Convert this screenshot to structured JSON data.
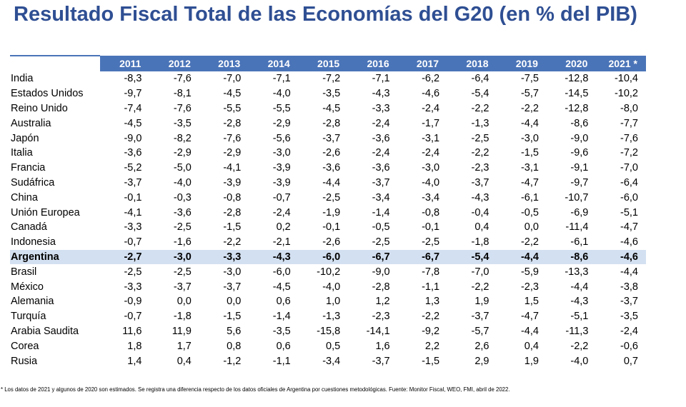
{
  "title": "Resultado Fiscal Total de las Economías del G20 (en % del PIB)",
  "table": {
    "years": [
      "2011",
      "2012",
      "2013",
      "2014",
      "2015",
      "2016",
      "2017",
      "2018",
      "2019",
      "2020",
      "2021 *"
    ],
    "rows": [
      {
        "country": "India",
        "values": [
          "-8,3",
          "-7,6",
          "-7,0",
          "-7,1",
          "-7,2",
          "-7,1",
          "-6,2",
          "-6,4",
          "-7,5",
          "-12,8",
          "-10,4"
        ]
      },
      {
        "country": "Estados Unidos",
        "values": [
          "-9,7",
          "-8,1",
          "-4,5",
          "-4,0",
          "-3,5",
          "-4,3",
          "-4,6",
          "-5,4",
          "-5,7",
          "-14,5",
          "-10,2"
        ]
      },
      {
        "country": "Reino Unido",
        "values": [
          "-7,4",
          "-7,6",
          "-5,5",
          "-5,5",
          "-4,5",
          "-3,3",
          "-2,4",
          "-2,2",
          "-2,2",
          "-12,8",
          "-8,0"
        ]
      },
      {
        "country": "Australia",
        "values": [
          "-4,5",
          "-3,5",
          "-2,8",
          "-2,9",
          "-2,8",
          "-2,4",
          "-1,7",
          "-1,3",
          "-4,4",
          "-8,6",
          "-7,7"
        ]
      },
      {
        "country": "Japón",
        "values": [
          "-9,0",
          "-8,2",
          "-7,6",
          "-5,6",
          "-3,7",
          "-3,6",
          "-3,1",
          "-2,5",
          "-3,0",
          "-9,0",
          "-7,6"
        ]
      },
      {
        "country": "Italia",
        "values": [
          "-3,6",
          "-2,9",
          "-2,9",
          "-3,0",
          "-2,6",
          "-2,4",
          "-2,4",
          "-2,2",
          "-1,5",
          "-9,6",
          "-7,2"
        ]
      },
      {
        "country": "Francia",
        "values": [
          "-5,2",
          "-5,0",
          "-4,1",
          "-3,9",
          "-3,6",
          "-3,6",
          "-3,0",
          "-2,3",
          "-3,1",
          "-9,1",
          "-7,0"
        ]
      },
      {
        "country": "Sudáfrica",
        "values": [
          "-3,7",
          "-4,0",
          "-3,9",
          "-3,9",
          "-4,4",
          "-3,7",
          "-4,0",
          "-3,7",
          "-4,7",
          "-9,7",
          "-6,4"
        ]
      },
      {
        "country": "China",
        "values": [
          "-0,1",
          "-0,3",
          "-0,8",
          "-0,7",
          "-2,5",
          "-3,4",
          "-3,4",
          "-4,3",
          "-6,1",
          "-10,7",
          "-6,0"
        ]
      },
      {
        "country": "Unión Europea",
        "values": [
          "-4,1",
          "-3,6",
          "-2,8",
          "-2,4",
          "-1,9",
          "-1,4",
          "-0,8",
          "-0,4",
          "-0,5",
          "-6,9",
          "-5,1"
        ]
      },
      {
        "country": "Canadá",
        "values": [
          "-3,3",
          "-2,5",
          "-1,5",
          "0,2",
          "-0,1",
          "-0,5",
          "-0,1",
          "0,4",
          "0,0",
          "-11,4",
          "-4,7"
        ]
      },
      {
        "country": "Indonesia",
        "values": [
          "-0,7",
          "-1,6",
          "-2,2",
          "-2,1",
          "-2,6",
          "-2,5",
          "-2,5",
          "-1,8",
          "-2,2",
          "-6,1",
          "-4,6"
        ]
      },
      {
        "country": "Argentina",
        "highlight": true,
        "values": [
          "-2,7",
          "-3,0",
          "-3,3",
          "-4,3",
          "-6,0",
          "-6,7",
          "-6,7",
          "-5,4",
          "-4,4",
          "-8,6",
          "-4,6"
        ]
      },
      {
        "country": "Brasil",
        "values": [
          "-2,5",
          "-2,5",
          "-3,0",
          "-6,0",
          "-10,2",
          "-9,0",
          "-7,8",
          "-7,0",
          "-5,9",
          "-13,3",
          "-4,4"
        ]
      },
      {
        "country": "México",
        "values": [
          "-3,3",
          "-3,7",
          "-3,7",
          "-4,5",
          "-4,0",
          "-2,8",
          "-1,1",
          "-2,2",
          "-2,3",
          "-4,4",
          "-3,8"
        ]
      },
      {
        "country": "Alemania",
        "values": [
          "-0,9",
          "0,0",
          "0,0",
          "0,6",
          "1,0",
          "1,2",
          "1,3",
          "1,9",
          "1,5",
          "-4,3",
          "-3,7"
        ]
      },
      {
        "country": "Turquía",
        "values": [
          "-0,7",
          "-1,8",
          "-1,5",
          "-1,4",
          "-1,3",
          "-2,3",
          "-2,2",
          "-3,7",
          "-4,7",
          "-5,1",
          "-3,5"
        ]
      },
      {
        "country": "Arabia Saudita",
        "values": [
          "11,6",
          "11,9",
          "5,6",
          "-3,5",
          "-15,8",
          "-14,1",
          "-9,2",
          "-5,7",
          "-4,4",
          "-11,3",
          "-2,4"
        ]
      },
      {
        "country": "Corea",
        "values": [
          "1,8",
          "1,7",
          "0,8",
          "0,6",
          "0,5",
          "1,6",
          "2,2",
          "2,6",
          "0,4",
          "-2,2",
          "-0,6"
        ]
      },
      {
        "country": "Rusia",
        "values": [
          "1,4",
          "0,4",
          "-1,2",
          "-1,1",
          "-3,4",
          "-3,7",
          "-1,5",
          "2,9",
          "1,9",
          "-4,0",
          "0,7"
        ]
      }
    ]
  },
  "footnote": {
    "text": "* Los datos de 2021 y algunos de 2020 son estimados. Se registra una diferencia respecto de los datos oficiales de Argentina por cuestiones metodológicas. Fuente: Monitor Fiscal, WEO, FMI, abril de 2022."
  },
  "colors": {
    "title": "#2f4f93",
    "header_bg": "#4a74b8",
    "highlight_bg": "#d3e0f1"
  }
}
